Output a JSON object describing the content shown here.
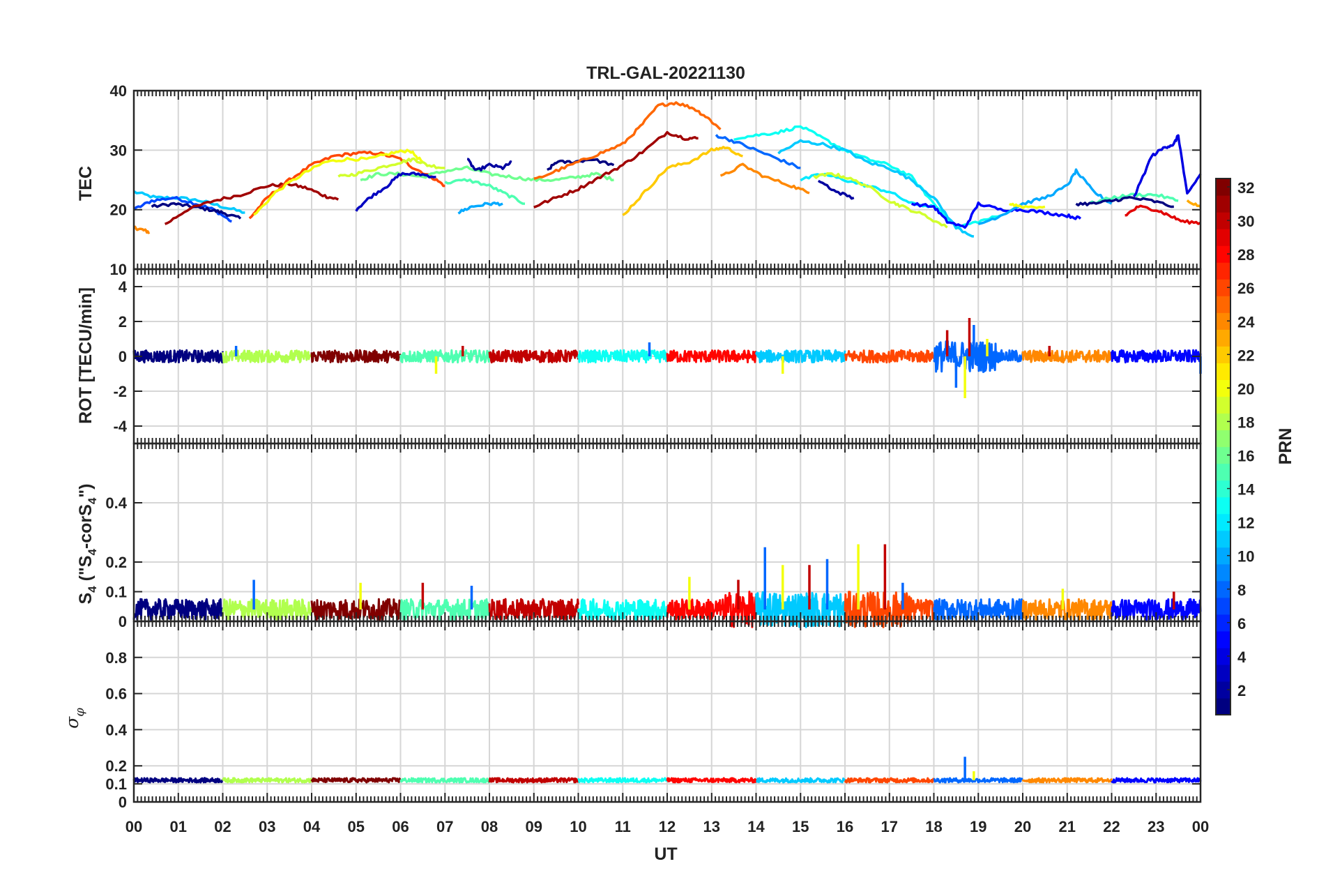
{
  "chart_data": {
    "type": "line",
    "title": "TRL-GAL-20221130",
    "xlabel": "UT",
    "x_ticks": [
      "00",
      "01",
      "02",
      "03",
      "04",
      "05",
      "06",
      "07",
      "08",
      "09",
      "10",
      "11",
      "12",
      "13",
      "14",
      "15",
      "16",
      "17",
      "18",
      "19",
      "20",
      "21",
      "22",
      "23",
      "00"
    ],
    "xlim": [
      0,
      24
    ],
    "grid": true,
    "colorbar": {
      "label": "PRN",
      "colormap": "jet",
      "range": [
        1,
        32
      ],
      "ticks": [
        "2",
        "4",
        "6",
        "8",
        "10",
        "12",
        "14",
        "16",
        "18",
        "20",
        "22",
        "24",
        "26",
        "28",
        "30",
        "32"
      ]
    },
    "panels": [
      {
        "ylabel": "TEC",
        "ylim": [
          10,
          40
        ],
        "yticks": [
          "10",
          "20",
          "30",
          "40"
        ],
        "series": [
          {
            "prn": 11,
            "x": [
              0,
              0.5,
              1,
              1.5,
              2,
              2.5
            ],
            "y": [
              23,
              22,
              22,
              21.5,
              20.5,
              19.5
            ]
          },
          {
            "prn": 7,
            "x": [
              0,
              0.4,
              0.9,
              1.4,
              1.8,
              2.2
            ],
            "y": [
              20,
              21.5,
              22,
              21,
              20,
              18
            ]
          },
          {
            "prn": 1,
            "x": [
              0.4,
              0.9,
              1.3,
              1.7,
              2,
              2.4
            ],
            "y": [
              20.5,
              21,
              20.5,
              20,
              19.5,
              18.5
            ]
          },
          {
            "prn": 24,
            "x": [
              0,
              0.2,
              0.35
            ],
            "y": [
              17,
              16.6,
              16.2
            ]
          },
          {
            "prn": 31,
            "x": [
              0.7,
              1.2,
              1.8,
              2.4,
              3,
              3.5,
              3.9,
              4.3,
              4.6
            ],
            "y": [
              17.5,
              20,
              21.5,
              22.5,
              24,
              24.3,
              23.6,
              22.3,
              21.7
            ]
          },
          {
            "prn": 26,
            "x": [
              2.6,
              3,
              3.5,
              4,
              4.5,
              5,
              5.5,
              6,
              6.3,
              6.7,
              7
            ],
            "y": [
              18.5,
              22,
              25,
              27.5,
              29,
              29.5,
              29.5,
              28.5,
              27,
              25.5,
              24
            ]
          },
          {
            "prn": 20,
            "x": [
              2.7,
              3.2,
              3.8,
              4.3,
              4.8,
              5.3,
              5.8,
              6.2,
              6.5
            ],
            "y": [
              19,
              23,
              26,
              28,
              28.5,
              28.5,
              29.5,
              30,
              28
            ]
          },
          {
            "prn": 19,
            "x": [
              4.6,
              5,
              5.5,
              6,
              6.3,
              6.6,
              7
            ],
            "y": [
              25.5,
              26,
              27,
              28,
              28.5,
              27.5,
              27
            ]
          },
          {
            "prn": 16,
            "x": [
              5.1,
              5.5,
              6,
              6.5,
              7,
              7.5,
              8,
              8.5,
              9,
              9.5,
              10,
              10.4,
              10.8
            ],
            "y": [
              25,
              26,
              26,
              25.5,
              26.5,
              27,
              26,
              25.5,
              25,
              25,
              25.5,
              26,
              25
            ]
          },
          {
            "prn": 3,
            "x": [
              5,
              5.3,
              5.7,
              6,
              6.4,
              6.8
            ],
            "y": [
              20,
              22,
              24,
              26,
              26,
              25.5
            ]
          },
          {
            "prn": 15,
            "x": [
              7,
              7.5,
              8,
              8.4,
              8.8
            ],
            "y": [
              24.5,
              25,
              24,
              22.5,
              21
            ]
          },
          {
            "prn": 10,
            "x": [
              7.3,
              7.6,
              8,
              8.3
            ],
            "y": [
              19.5,
              20.5,
              21,
              21
            ]
          },
          {
            "prn": 2,
            "x": [
              7.5,
              7.7,
              8,
              8.3,
              8.5
            ],
            "y": [
              28.5,
              26.5,
              27.5,
              27,
              28
            ]
          },
          {
            "prn": 1,
            "x": [
              9.3,
              9.5,
              9.9,
              10.3,
              10.8
            ],
            "y": [
              26.5,
              28,
              28,
              28.5,
              27.5
            ]
          },
          {
            "prn": 25,
            "x": [
              9,
              9.5,
              10,
              10.5,
              11,
              11.4,
              11.8,
              12.2,
              12.6,
              12.9,
              13.2
            ],
            "y": [
              25,
              26.5,
              28,
              29.5,
              31,
              34,
              37.5,
              38,
              37,
              35.5,
              33.5
            ]
          },
          {
            "prn": 31,
            "x": [
              9,
              9.5,
              10,
              10.5,
              11,
              11.5,
              12,
              12.4,
              12.7
            ],
            "y": [
              20.5,
              22,
              23.5,
              25.5,
              27.5,
              30,
              33,
              32,
              32
            ]
          },
          {
            "prn": 22,
            "x": [
              11,
              11.5,
              12,
              12.5,
              13,
              13.3,
              13.7
            ],
            "y": [
              19,
              23,
              27,
              28,
              30,
              30.5,
              29
            ]
          },
          {
            "prn": 24,
            "x": [
              13.2,
              13.7,
              14.2,
              14.8,
              15.2
            ],
            "y": [
              25.5,
              27.5,
              25.5,
              24,
              22.8
            ]
          },
          {
            "prn": 13,
            "x": [
              13.5,
              14,
              14.5,
              15,
              15.5,
              16,
              16.5,
              17,
              17.5,
              18,
              18.5,
              19,
              19.5
            ],
            "y": [
              32,
              32.5,
              33,
              34,
              32,
              30,
              28.5,
              27.5,
              25.5,
              21,
              17,
              18,
              19
            ]
          },
          {
            "prn": 8,
            "x": [
              13.1,
              13.5,
              14,
              14.5,
              15
            ],
            "y": [
              32.5,
              31.5,
              30,
              28.5,
              27
            ]
          },
          {
            "prn": 11,
            "x": [
              14.5,
              15,
              15.5,
              16,
              16.5,
              17,
              17.5,
              18,
              18.5,
              18.9
            ],
            "y": [
              29.5,
              31.5,
              31,
              30,
              28,
              27,
              25,
              22,
              17,
              15.5
            ]
          },
          {
            "prn": 12,
            "x": [
              15,
              15.5,
              16,
              16.5,
              17,
              17.5,
              18
            ],
            "y": [
              25,
              26,
              25,
              24,
              23,
              21,
              20.5
            ]
          },
          {
            "prn": 19,
            "x": [
              15.3,
              15.7,
              16,
              16.5,
              17,
              17.3,
              17.8,
              18.3
            ],
            "y": [
              25.5,
              26,
              25.5,
              24,
              21.5,
              20.5,
              19,
              17
            ]
          },
          {
            "prn": 2,
            "x": [
              15.4,
              15.8,
              16.2
            ],
            "y": [
              25,
              23,
              22
            ]
          },
          {
            "prn": 5,
            "x": [
              17.5,
              18,
              18.3,
              18.7,
              19,
              19.5,
              20,
              20.5,
              21,
              21.3
            ],
            "y": [
              21,
              20.5,
              18,
              17,
              21,
              20,
              20,
              19.5,
              19,
              18.5
            ]
          },
          {
            "prn": 10,
            "x": [
              19,
              19.5,
              20,
              20.5,
              21,
              21.2,
              21.6,
              22
            ],
            "y": [
              17.5,
              19,
              21,
              22,
              24,
              26.5,
              23,
              21
            ]
          },
          {
            "prn": 20,
            "x": [
              19.7,
              20,
              20.5
            ],
            "y": [
              21,
              20.5,
              20.5
            ]
          },
          {
            "prn": 15,
            "x": [
              21.5,
              22,
              22.5,
              23,
              23.5
            ],
            "y": [
              21,
              22,
              22.5,
              22.5,
              21.5
            ]
          },
          {
            "prn": 1,
            "x": [
              21.2,
              21.6,
              22,
              22.4,
              22.9,
              23.4
            ],
            "y": [
              21,
              21,
              21.5,
              22,
              21.5,
              20.5
            ]
          },
          {
            "prn": 4,
            "x": [
              22.5,
              22.9,
              23.2,
              23.4,
              23.5,
              23.7,
              24
            ],
            "y": [
              22,
              29,
              30.5,
              31,
              32.5,
              22.5,
              26
            ]
          },
          {
            "prn": 29,
            "x": [
              22.3,
              22.6,
              23,
              23.3,
              23.6,
              24
            ],
            "y": [
              19,
              20.5,
              20,
              19,
              18,
              17.8
            ]
          },
          {
            "prn": 23,
            "x": [
              23.7,
              24
            ],
            "y": [
              21.5,
              20.5
            ]
          }
        ]
      },
      {
        "ylabel": "ROT [TECU/min]",
        "ylim": [
          -5,
          5
        ],
        "yticks": [
          "-4",
          "-2",
          "0",
          "2",
          "4"
        ],
        "spikes": [
          {
            "x": 2.3,
            "y": 0.6
          },
          {
            "x": 6.8,
            "y": -1.0
          },
          {
            "x": 7.4,
            "y": 0.6
          },
          {
            "x": 11.6,
            "y": 0.8
          },
          {
            "x": 14.6,
            "y": -1.0
          },
          {
            "x": 18.3,
            "y": 1.5
          },
          {
            "x": 18.5,
            "y": -1.8
          },
          {
            "x": 18.7,
            "y": -2.4
          },
          {
            "x": 18.8,
            "y": 2.2
          },
          {
            "x": 18.9,
            "y": 1.8
          },
          {
            "x": 19.2,
            "y": 1.0
          },
          {
            "x": 20.6,
            "y": 0.6
          },
          {
            "x": 24.0,
            "y": -1.0
          }
        ]
      },
      {
        "ylabel": "S4 (\"S4-corS4\")",
        "ylim": [
          0,
          0.6
        ],
        "yticks": [
          "0",
          "0.1",
          "0.2",
          "0.4"
        ],
        "spikes": [
          {
            "x": 2.7,
            "y": 0.14
          },
          {
            "x": 5.1,
            "y": 0.13
          },
          {
            "x": 6.5,
            "y": 0.13
          },
          {
            "x": 7.6,
            "y": 0.12
          },
          {
            "x": 12.5,
            "y": 0.15
          },
          {
            "x": 13.6,
            "y": 0.14
          },
          {
            "x": 14.2,
            "y": 0.25
          },
          {
            "x": 14.6,
            "y": 0.19
          },
          {
            "x": 15.2,
            "y": 0.19
          },
          {
            "x": 15.6,
            "y": 0.21
          },
          {
            "x": 16.3,
            "y": 0.26
          },
          {
            "x": 16.9,
            "y": 0.26
          },
          {
            "x": 17.3,
            "y": 0.13
          },
          {
            "x": 20.9,
            "y": 0.11
          },
          {
            "x": 23.4,
            "y": 0.1
          }
        ]
      },
      {
        "ylabel": "σφ",
        "ylim": [
          0,
          1
        ],
        "yticks": [
          "0",
          "0.1",
          "0.2",
          "0.4",
          "0.6",
          "0.8"
        ],
        "spikes": [
          {
            "x": 18.7,
            "y": 0.25
          },
          {
            "x": 18.9,
            "y": 0.17
          }
        ]
      }
    ]
  }
}
